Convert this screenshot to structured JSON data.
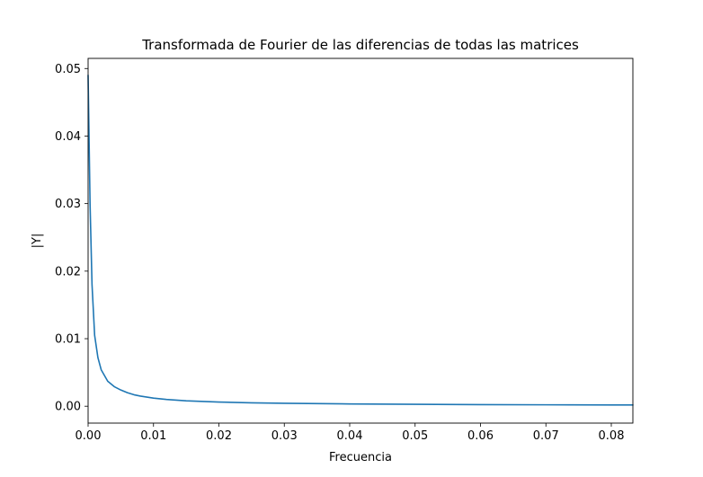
{
  "chart_data": {
    "type": "line",
    "title": "Transformada de Fourier de las diferencias de todas las matrices",
    "xlabel": "Frecuencia",
    "ylabel": "|Y|",
    "xlim": [
      0,
      0.0833
    ],
    "ylim": [
      -0.0025,
      0.0515
    ],
    "xticks": [
      0.0,
      0.01,
      0.02,
      0.03,
      0.04,
      0.05,
      0.06,
      0.07,
      0.08
    ],
    "xtick_labels": [
      "0.00",
      "0.01",
      "0.02",
      "0.03",
      "0.04",
      "0.05",
      "0.06",
      "0.07",
      "0.08"
    ],
    "yticks": [
      0.0,
      0.01,
      0.02,
      0.03,
      0.04,
      0.05
    ],
    "ytick_labels": [
      "0.00",
      "0.01",
      "0.02",
      "0.03",
      "0.04",
      "0.05"
    ],
    "grid": false,
    "series": [
      {
        "color": "#1f77b4",
        "x": [
          0.0,
          0.0003,
          0.0006,
          0.001,
          0.0015,
          0.002,
          0.003,
          0.004,
          0.005,
          0.006,
          0.007,
          0.008,
          0.01,
          0.012,
          0.015,
          0.02,
          0.025,
          0.03,
          0.04,
          0.05,
          0.06,
          0.07,
          0.08,
          0.0833
        ],
        "y": [
          0.049,
          0.03,
          0.018,
          0.0105,
          0.0072,
          0.0054,
          0.0037,
          0.0029,
          0.0024,
          0.002,
          0.0017,
          0.0015,
          0.0012,
          0.001,
          0.0008,
          0.00062,
          0.0005,
          0.00043,
          0.00034,
          0.00028,
          0.00024,
          0.00021,
          0.00019,
          0.00018
        ]
      }
    ]
  }
}
